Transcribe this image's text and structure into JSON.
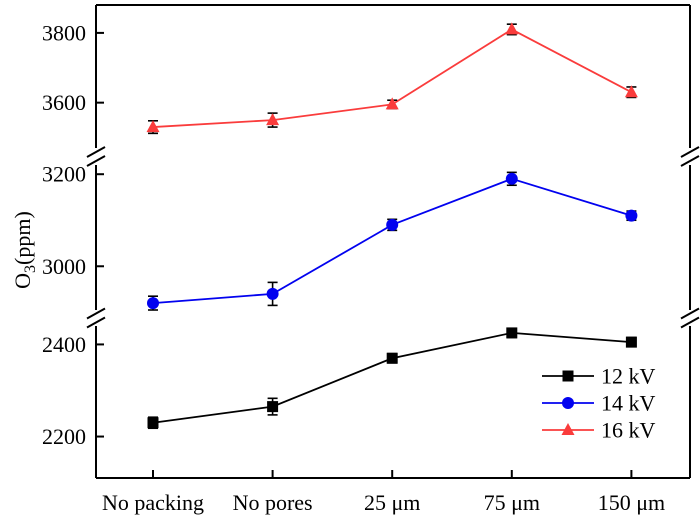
{
  "figure": {
    "kind": "scientific-line-chart",
    "background": "#ffffff",
    "frame_color": "#000000"
  },
  "chart_data": {
    "type": "line",
    "title": "",
    "xlabel": "",
    "ylabel": {
      "base": "O",
      "subscript": "3",
      "unit": "(ppm)"
    },
    "categories": [
      "No packing",
      "No pores",
      "25 μm",
      "75 μm",
      "150 μm"
    ],
    "series": [
      {
        "name": "12 kV",
        "color": "#000000",
        "marker": "square",
        "values": [
          2230,
          2265,
          2370,
          2425,
          2405
        ],
        "errors": [
          12,
          18,
          10,
          10,
          10
        ]
      },
      {
        "name": "14 kV",
        "color": "#0202ef",
        "marker": "circle",
        "values": [
          2920,
          2940,
          3090,
          3190,
          3110
        ],
        "errors": [
          15,
          25,
          12,
          14,
          10
        ]
      },
      {
        "name": "16 kV",
        "color": "#fa3c3c",
        "marker": "triangle",
        "values": [
          3530,
          3550,
          3595,
          3810,
          3630
        ],
        "errors": [
          18,
          20,
          12,
          15,
          15
        ]
      }
    ],
    "error_bar_color": "#000000",
    "y_axis": {
      "broken": true,
      "segments": [
        {
          "range": [
            2110,
            2440
          ],
          "ticks": [
            2200,
            2400
          ]
        },
        {
          "range": [
            2905,
            3220
          ],
          "ticks": [
            3000,
            3200
          ]
        },
        {
          "range": [
            3470,
            3880
          ],
          "ticks": [
            3600,
            3800
          ]
        }
      ]
    },
    "x_axis": {
      "tick_labels": [
        "No packing",
        "No pores",
        "25 μm",
        "75 μm",
        "150 μm"
      ]
    },
    "legend": {
      "position": "inside bottom-right",
      "entries": [
        "12 kV",
        "14 kV",
        "16 kV"
      ]
    },
    "grid": false
  }
}
